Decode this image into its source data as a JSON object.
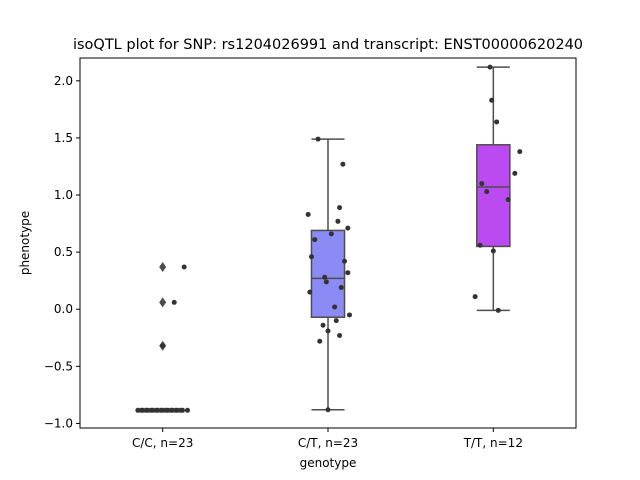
{
  "chart_data": {
    "type": "box",
    "title": "isoQTL plot for SNP: rs1204026991 and transcript: ENST00000620240",
    "xlabel": "genotype",
    "ylabel": "phenotype",
    "ylim": [
      -1.04,
      2.2
    ],
    "yticks": [
      -1.0,
      -0.5,
      0.0,
      0.5,
      1.0,
      1.5,
      2.0
    ],
    "ytick_labels": [
      "−1.0",
      "−0.5",
      "0.0",
      "0.5",
      "1.0",
      "1.5",
      "2.0"
    ],
    "categories": [
      "C/C, n=23",
      "C/T, n=23",
      "T/T, n=12"
    ],
    "grid": false,
    "legend": "none",
    "colors": {
      "C/C": "#7b7bf2",
      "C/T": "#8b8bf5",
      "T/T": "#bb4bf0",
      "box_edge": "#4d4d4d",
      "points": "#333333"
    },
    "boxes": [
      {
        "category": "C/C, n=23",
        "q1": -0.885,
        "median": -0.885,
        "q3": -0.885,
        "whisker_low": -0.885,
        "whisker_high": -0.885,
        "outliers": [
          0.37,
          0.06,
          -0.32
        ],
        "points": [
          -0.885,
          -0.885,
          -0.885,
          -0.885,
          -0.885,
          -0.885,
          -0.885,
          -0.885,
          -0.885,
          -0.885,
          -0.885,
          -0.885,
          -0.885,
          -0.885,
          -0.885,
          -0.885,
          -0.885,
          -0.885,
          -0.885,
          -0.885,
          0.37,
          0.06,
          -0.32
        ],
        "jitter": [
          -0.15,
          -0.12,
          -0.09,
          -0.06,
          -0.03,
          0.0,
          0.03,
          0.06,
          0.09,
          0.12,
          0.15,
          -0.13,
          -0.07,
          -0.01,
          0.05,
          0.11,
          -0.1,
          -0.04,
          0.02,
          0.08,
          0.13,
          0.07,
          0.0
        ]
      },
      {
        "category": "C/T, n=23",
        "q1": -0.07,
        "median": 0.27,
        "q3": 0.69,
        "whisker_low": -0.88,
        "whisker_high": 1.49,
        "outliers": [],
        "points": [
          1.49,
          1.27,
          0.89,
          0.83,
          0.77,
          0.71,
          0.66,
          0.61,
          0.46,
          0.42,
          0.32,
          0.28,
          0.24,
          0.19,
          0.15,
          0.02,
          -0.05,
          -0.1,
          -0.14,
          -0.19,
          -0.23,
          -0.28,
          -0.88
        ],
        "jitter": [
          -0.06,
          0.09,
          0.07,
          -0.12,
          0.06,
          0.12,
          0.02,
          -0.08,
          -0.1,
          0.1,
          0.12,
          -0.02,
          -0.01,
          0.08,
          -0.11,
          0.04,
          0.13,
          0.05,
          -0.03,
          0.0,
          0.07,
          -0.05,
          0.0
        ]
      },
      {
        "category": "T/T, n=12",
        "q1": 0.55,
        "median": 1.07,
        "q3": 1.44,
        "whisker_low": -0.01,
        "whisker_high": 2.12,
        "outliers": [],
        "points": [
          2.12,
          1.83,
          1.64,
          1.38,
          1.19,
          1.1,
          1.03,
          0.96,
          0.56,
          0.51,
          0.11,
          -0.01
        ],
        "jitter": [
          -0.02,
          -0.01,
          0.02,
          0.16,
          0.13,
          -0.07,
          -0.04,
          0.09,
          -0.08,
          0.0,
          -0.11,
          0.03
        ]
      }
    ]
  }
}
